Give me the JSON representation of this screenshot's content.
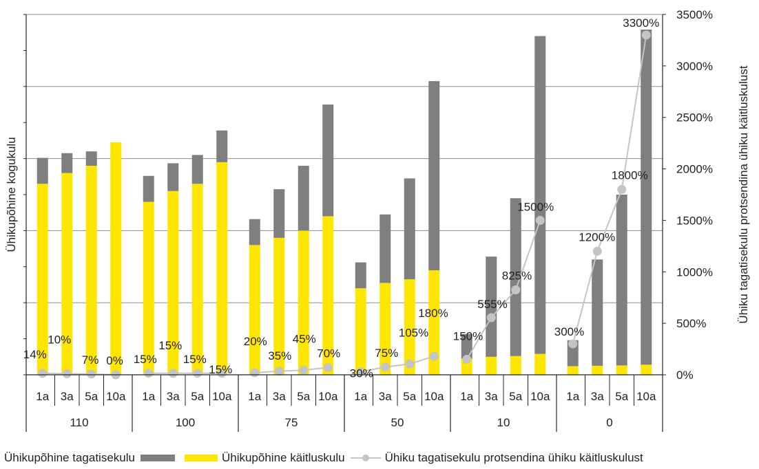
{
  "chart_data": {
    "type": "bar",
    "subtype": "stacked bar with line on secondary axis",
    "ylabel": "Ühikupõhine kogukulu",
    "y2label": "Ühiku tagatisekulu protsendina ühiku käitluskulust",
    "y2lim": [
      0,
      3500
    ],
    "y2ticks": [
      "0%",
      "500%",
      "1000%",
      "1500%",
      "2000%",
      "2500%",
      "3000%",
      "3500%"
    ],
    "ylim": [
      0,
      10
    ],
    "grid": true,
    "legend_position": "bottom",
    "groups": [
      "110",
      "100",
      "75",
      "50",
      "10",
      "0"
    ],
    "periods": [
      "1a",
      "3a",
      "5a",
      "10a"
    ],
    "categories": [
      "110 1a",
      "110 3a",
      "110 5a",
      "110 10a",
      "100 1a",
      "100 3a",
      "100 5a",
      "100 10a",
      "75 1a",
      "75 3a",
      "75 5a",
      "75 10a",
      "50 1a",
      "50 3a",
      "50 5a",
      "50 10a",
      "10 1a",
      "10 3a",
      "10 5a",
      "10 10a",
      "0 1a",
      "0 3a",
      "0 5a",
      "0 10a"
    ],
    "series": [
      {
        "name": "Ühikupõhine käitluskulu",
        "kind": "bar",
        "color": "#ffe600",
        "values": [
          5.3,
          5.6,
          5.8,
          6.45,
          4.8,
          5.1,
          5.3,
          5.9,
          3.6,
          3.8,
          4.0,
          4.4,
          2.4,
          2.55,
          2.65,
          2.9,
          0.45,
          0.5,
          0.52,
          0.58,
          0.24,
          0.25,
          0.26,
          0.28
        ]
      },
      {
        "name": "Ühikupõhine tagatisekulu",
        "kind": "bar",
        "color": "#7f7f80",
        "values": [
          0.72,
          0.55,
          0.4,
          0.0,
          0.72,
          0.77,
          0.8,
          0.88,
          0.72,
          1.35,
          1.8,
          3.1,
          0.72,
          1.9,
          2.8,
          5.25,
          0.68,
          2.78,
          4.38,
          8.82,
          0.72,
          2.95,
          4.74,
          9.3
        ]
      },
      {
        "name": "Ühiku tagatisekulu protsendina ühiku käitluskulust",
        "kind": "line",
        "axis": "secondary",
        "color": "#c4c4c4",
        "values": [
          14,
          10,
          7,
          0,
          15,
          15,
          15,
          15,
          20,
          35,
          45,
          70,
          30,
          75,
          105,
          180,
          150,
          555,
          825,
          1500,
          300,
          1200,
          1800,
          3300
        ],
        "labels": [
          "14%",
          "10%",
          "7%",
          "0%",
          "15%",
          "15%",
          "15%",
          "15%",
          "20%",
          "35%",
          "45%",
          "70%",
          "30%",
          "75%",
          "105%",
          "180%",
          "150%",
          "555%",
          "825%",
          "1500%",
          "300%",
          "1200%",
          "1800%",
          "3300%"
        ]
      }
    ]
  },
  "legend": {
    "gray_label": "Ühikupõhine tagatisekulu",
    "yellow_label": "Ühikupõhine käitluskulu",
    "line_label": "Ühiku tagatisekulu protsendina ühiku käitluskulust"
  }
}
